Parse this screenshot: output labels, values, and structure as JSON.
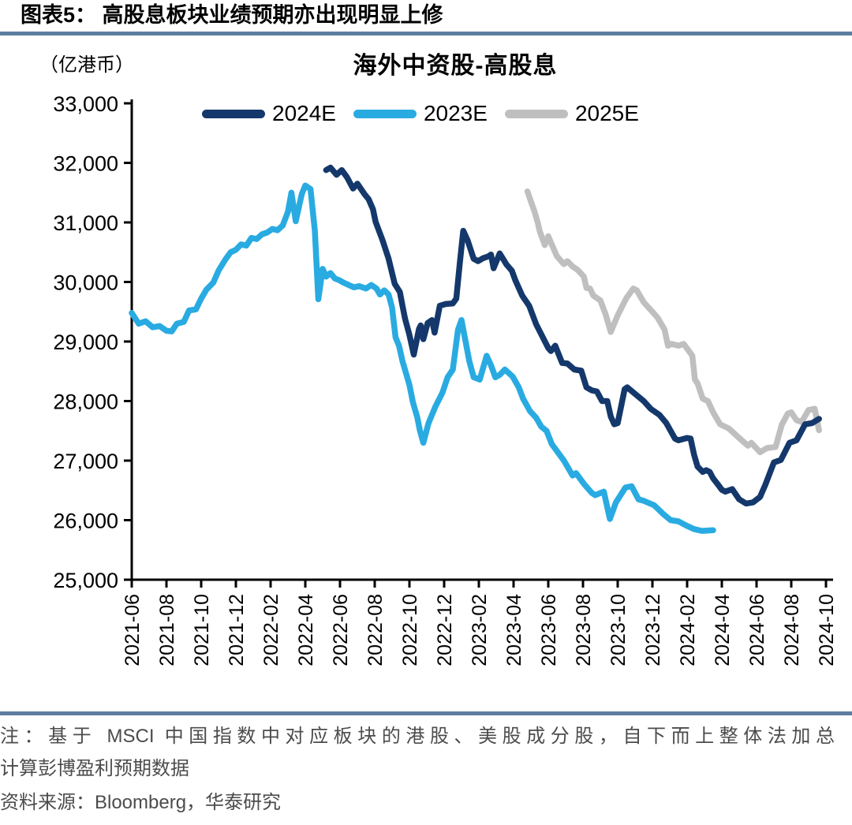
{
  "header": {
    "label": "图表5：",
    "title": "高股息板块业绩预期亦出现明显上修"
  },
  "footnote": {
    "line1": "注：基于 MSCI 中国指数中对应板块的港股、美股成分股，自下而上整体法加总",
    "line2": "计算彭博盈利预期数据",
    "line3": "资料来源：Bloomberg，华泰研究"
  },
  "chart_data": {
    "type": "line",
    "title": "海外中资股-高股息",
    "unit_display": "（亿港币）",
    "unit": "亿港币",
    "ylim": [
      25000,
      33000
    ],
    "y_tick_step": 1000,
    "x_note": "x values are months since 2021-06 (0 = 2021-06, 1 month per unit)",
    "x_tick_positions": [
      0,
      2,
      4,
      6,
      8,
      10,
      12,
      14,
      16,
      18,
      20,
      22,
      24,
      26,
      28,
      30,
      32,
      34,
      36,
      38,
      40
    ],
    "x_tick_labels": [
      "2021-06",
      "2021-08",
      "2021-10",
      "2021-12",
      "2022-02",
      "2022-04",
      "2022-06",
      "2022-08",
      "2022-10",
      "2022-12",
      "2023-02",
      "2023-04",
      "2023-06",
      "2023-08",
      "2023-10",
      "2023-12",
      "2024-02",
      "2024-04",
      "2024-06",
      "2024-08",
      "2024-10"
    ],
    "grid": false,
    "legend_position": "top",
    "series": [
      {
        "name": "2024E",
        "color": "#14386B",
        "points": [
          [
            11.2,
            31880
          ],
          [
            11.45,
            31920
          ],
          [
            11.8,
            31800
          ],
          [
            12.1,
            31880
          ],
          [
            12.4,
            31760
          ],
          [
            12.75,
            31570
          ],
          [
            13.0,
            31650
          ],
          [
            13.4,
            31480
          ],
          [
            13.65,
            31390
          ],
          [
            13.9,
            31220
          ],
          [
            14.05,
            31010
          ],
          [
            14.45,
            30700
          ],
          [
            14.8,
            30390
          ],
          [
            15.15,
            29970
          ],
          [
            15.45,
            29830
          ],
          [
            15.6,
            29600
          ],
          [
            15.75,
            29380
          ],
          [
            16.0,
            29110
          ],
          [
            16.25,
            28780
          ],
          [
            16.55,
            29210
          ],
          [
            16.65,
            29270
          ],
          [
            16.8,
            29040
          ],
          [
            17.05,
            29310
          ],
          [
            17.3,
            29360
          ],
          [
            17.45,
            29150
          ],
          [
            17.75,
            29600
          ],
          [
            18.1,
            29630
          ],
          [
            18.5,
            29640
          ],
          [
            18.7,
            29720
          ],
          [
            18.9,
            30310
          ],
          [
            19.1,
            30860
          ],
          [
            19.35,
            30700
          ],
          [
            19.7,
            30390
          ],
          [
            19.95,
            30350
          ],
          [
            20.25,
            30400
          ],
          [
            20.55,
            30430
          ],
          [
            20.7,
            30460
          ],
          [
            20.85,
            30230
          ],
          [
            21.2,
            30480
          ],
          [
            21.6,
            30290
          ],
          [
            21.9,
            30190
          ],
          [
            22.1,
            30030
          ],
          [
            22.5,
            29770
          ],
          [
            22.9,
            29600
          ],
          [
            23.3,
            29290
          ],
          [
            24.0,
            28890
          ],
          [
            24.15,
            28840
          ],
          [
            24.4,
            28930
          ],
          [
            24.8,
            28640
          ],
          [
            25.1,
            28630
          ],
          [
            25.5,
            28530
          ],
          [
            25.9,
            28510
          ],
          [
            26.2,
            28230
          ],
          [
            26.5,
            28180
          ],
          [
            26.8,
            28160
          ],
          [
            27.1,
            28000
          ],
          [
            27.4,
            28000
          ],
          [
            27.6,
            27740
          ],
          [
            27.8,
            27610
          ],
          [
            28.0,
            27630
          ],
          [
            28.4,
            28200
          ],
          [
            28.55,
            28230
          ],
          [
            29.0,
            28120
          ],
          [
            29.5,
            28000
          ],
          [
            29.9,
            27870
          ],
          [
            30.4,
            27770
          ],
          [
            30.8,
            27630
          ],
          [
            31.3,
            27370
          ],
          [
            31.5,
            27340
          ],
          [
            32.0,
            27380
          ],
          [
            32.2,
            27370
          ],
          [
            32.4,
            27100
          ],
          [
            32.6,
            26900
          ],
          [
            32.9,
            26810
          ],
          [
            33.1,
            26840
          ],
          [
            33.3,
            26810
          ],
          [
            33.5,
            26700
          ],
          [
            33.8,
            26590
          ],
          [
            34.0,
            26510
          ],
          [
            34.2,
            26480
          ],
          [
            34.6,
            26520
          ],
          [
            35.0,
            26350
          ],
          [
            35.4,
            26280
          ],
          [
            35.8,
            26300
          ],
          [
            36.2,
            26390
          ],
          [
            36.5,
            26590
          ],
          [
            37.0,
            26970
          ],
          [
            37.4,
            27010
          ],
          [
            37.9,
            27300
          ],
          [
            38.3,
            27340
          ],
          [
            38.8,
            27610
          ],
          [
            39.2,
            27630
          ],
          [
            39.6,
            27700
          ]
        ]
      },
      {
        "name": "2023E",
        "color": "#29ABE2",
        "points": [
          [
            0,
            29480
          ],
          [
            0.4,
            29300
          ],
          [
            0.8,
            29340
          ],
          [
            1.2,
            29240
          ],
          [
            1.6,
            29260
          ],
          [
            2.0,
            29180
          ],
          [
            2.3,
            29170
          ],
          [
            2.6,
            29300
          ],
          [
            3.0,
            29330
          ],
          [
            3.3,
            29520
          ],
          [
            3.7,
            29540
          ],
          [
            4.0,
            29720
          ],
          [
            4.3,
            29870
          ],
          [
            4.7,
            29990
          ],
          [
            5.0,
            30190
          ],
          [
            5.4,
            30380
          ],
          [
            5.7,
            30500
          ],
          [
            6.0,
            30540
          ],
          [
            6.3,
            30630
          ],
          [
            6.6,
            30610
          ],
          [
            6.9,
            30740
          ],
          [
            7.2,
            30720
          ],
          [
            7.5,
            30800
          ],
          [
            7.8,
            30830
          ],
          [
            8.1,
            30890
          ],
          [
            8.4,
            30870
          ],
          [
            8.7,
            30950
          ],
          [
            9.0,
            31180
          ],
          [
            9.2,
            31500
          ],
          [
            9.45,
            31020
          ],
          [
            9.8,
            31480
          ],
          [
            10.0,
            31620
          ],
          [
            10.3,
            31560
          ],
          [
            10.55,
            30860
          ],
          [
            10.75,
            29710
          ],
          [
            11.0,
            30220
          ],
          [
            11.2,
            30090
          ],
          [
            11.45,
            30150
          ],
          [
            11.7,
            30060
          ],
          [
            11.95,
            30030
          ],
          [
            12.2,
            29990
          ],
          [
            12.5,
            29950
          ],
          [
            12.8,
            29910
          ],
          [
            13.1,
            29930
          ],
          [
            13.5,
            29890
          ],
          [
            13.8,
            29950
          ],
          [
            14.1,
            29890
          ],
          [
            14.3,
            29790
          ],
          [
            14.55,
            29860
          ],
          [
            14.8,
            29790
          ],
          [
            15.0,
            29570
          ],
          [
            15.2,
            29070
          ],
          [
            15.4,
            28930
          ],
          [
            15.6,
            28670
          ],
          [
            15.8,
            28470
          ],
          [
            16.0,
            28270
          ],
          [
            16.2,
            27980
          ],
          [
            16.45,
            27730
          ],
          [
            16.6,
            27510
          ],
          [
            16.8,
            27300
          ],
          [
            17.1,
            27630
          ],
          [
            17.5,
            27910
          ],
          [
            17.9,
            28140
          ],
          [
            18.2,
            28400
          ],
          [
            18.5,
            28530
          ],
          [
            18.8,
            29200
          ],
          [
            19.0,
            29360
          ],
          [
            19.45,
            28670
          ],
          [
            19.7,
            28400
          ],
          [
            20.05,
            28360
          ],
          [
            20.45,
            28760
          ],
          [
            20.7,
            28600
          ],
          [
            20.95,
            28400
          ],
          [
            21.2,
            28440
          ],
          [
            21.5,
            28530
          ],
          [
            21.95,
            28410
          ],
          [
            22.3,
            28230
          ],
          [
            22.55,
            28040
          ],
          [
            22.95,
            27830
          ],
          [
            23.3,
            27720
          ],
          [
            23.6,
            27570
          ],
          [
            23.9,
            27500
          ],
          [
            24.2,
            27280
          ],
          [
            24.9,
            27000
          ],
          [
            25.4,
            26750
          ],
          [
            25.6,
            26790
          ],
          [
            26.05,
            26610
          ],
          [
            26.5,
            26460
          ],
          [
            26.7,
            26420
          ],
          [
            27.2,
            26480
          ],
          [
            27.55,
            26020
          ],
          [
            27.9,
            26300
          ],
          [
            28.45,
            26550
          ],
          [
            28.8,
            26570
          ],
          [
            29.2,
            26350
          ],
          [
            29.45,
            26330
          ],
          [
            30.1,
            26250
          ],
          [
            30.6,
            26110
          ],
          [
            31.05,
            26000
          ],
          [
            31.5,
            25980
          ],
          [
            31.95,
            25910
          ],
          [
            32.4,
            25850
          ],
          [
            32.85,
            25820
          ],
          [
            33.5,
            25830
          ]
        ]
      },
      {
        "name": "2025E",
        "color": "#BFBFBF",
        "points": [
          [
            22.8,
            31520
          ],
          [
            23.0,
            31350
          ],
          [
            23.2,
            31190
          ],
          [
            23.4,
            30990
          ],
          [
            23.5,
            30860
          ],
          [
            23.8,
            30620
          ],
          [
            24.0,
            30770
          ],
          [
            24.2,
            30630
          ],
          [
            24.5,
            30430
          ],
          [
            24.9,
            30300
          ],
          [
            25.1,
            30350
          ],
          [
            25.4,
            30260
          ],
          [
            25.7,
            30200
          ],
          [
            26.05,
            30090
          ],
          [
            26.2,
            29900
          ],
          [
            26.4,
            29890
          ],
          [
            26.6,
            29770
          ],
          [
            27.0,
            29690
          ],
          [
            27.3,
            29460
          ],
          [
            27.6,
            29160
          ],
          [
            28.0,
            29440
          ],
          [
            28.5,
            29730
          ],
          [
            28.9,
            29890
          ],
          [
            29.1,
            29860
          ],
          [
            29.5,
            29660
          ],
          [
            30.0,
            29500
          ],
          [
            30.3,
            29400
          ],
          [
            30.7,
            29200
          ],
          [
            30.9,
            28930
          ],
          [
            31.1,
            28960
          ],
          [
            31.5,
            28930
          ],
          [
            31.8,
            28960
          ],
          [
            32.3,
            28760
          ],
          [
            32.45,
            28360
          ],
          [
            32.6,
            28300
          ],
          [
            32.9,
            28040
          ],
          [
            33.2,
            28000
          ],
          [
            33.5,
            27810
          ],
          [
            33.9,
            27610
          ],
          [
            34.4,
            27540
          ],
          [
            35.0,
            27380
          ],
          [
            35.5,
            27250
          ],
          [
            35.7,
            27300
          ],
          [
            36.2,
            27140
          ],
          [
            36.6,
            27210
          ],
          [
            37.1,
            27230
          ],
          [
            37.45,
            27600
          ],
          [
            37.8,
            27790
          ],
          [
            38.0,
            27810
          ],
          [
            38.3,
            27680
          ],
          [
            38.6,
            27650
          ],
          [
            39.0,
            27850
          ],
          [
            39.35,
            27870
          ],
          [
            39.6,
            27510
          ]
        ]
      }
    ]
  }
}
